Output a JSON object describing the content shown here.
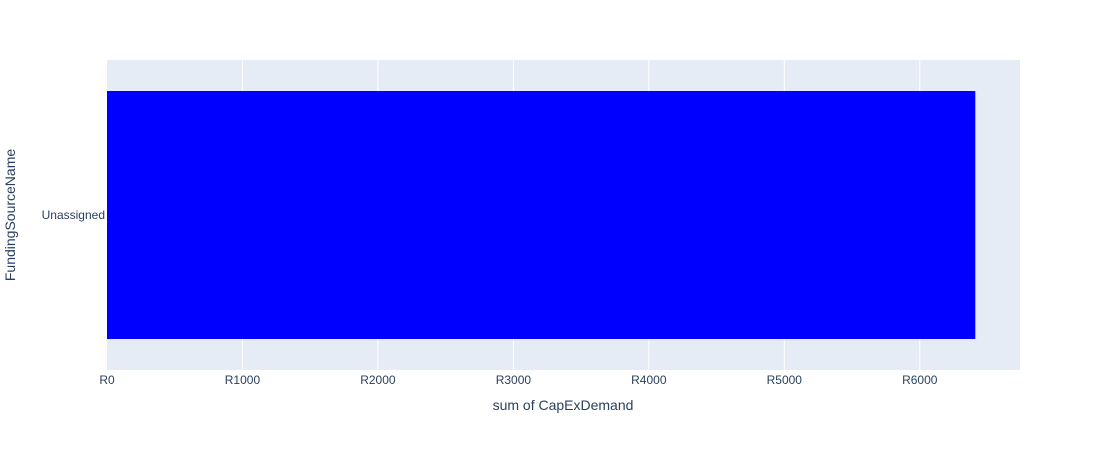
{
  "colors": {
    "plot_background": "#e5ecf6",
    "grid": "#ffffff",
    "bar": "#0000ff",
    "text": "#2a3f5f"
  },
  "chart_data": {
    "type": "bar",
    "orientation": "horizontal",
    "categories": [
      "Unassigned"
    ],
    "values": [
      6410
    ],
    "xlabel": "sum of CapExDemand",
    "ylabel": "FundingSourceName",
    "xlim": [
      0,
      6740
    ],
    "x_ticks": [
      0,
      1000,
      2000,
      3000,
      4000,
      5000,
      6000
    ],
    "x_tick_labels": [
      "R0",
      "R1000",
      "R2000",
      "R3000",
      "R4000",
      "R5000",
      "R6000"
    ],
    "grid": true,
    "legend": "none"
  }
}
